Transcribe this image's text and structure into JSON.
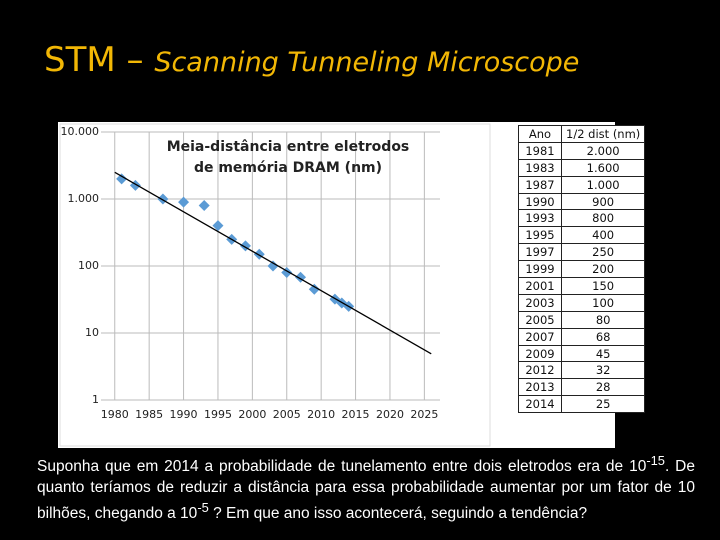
{
  "header": {
    "title_prefix": "STM –",
    "title_main": "Scanning Tunneling Microscope"
  },
  "chart_data": {
    "type": "scatter",
    "title_lines": [
      "Meia-distância entre eletrodos",
      "de memória DRAM (nm)"
    ],
    "x": [
      1981,
      1983,
      1987,
      1990,
      1993,
      1995,
      1997,
      1999,
      2001,
      2003,
      2005,
      2007,
      2009,
      2012,
      2013,
      2014
    ],
    "values": [
      2000,
      1600,
      1000,
      900,
      800,
      400,
      250,
      200,
      150,
      100,
      80,
      68,
      45,
      32,
      28,
      25
    ],
    "color": "#5b9bd5",
    "trendline": {
      "x": [
        1980,
        2026
      ],
      "values": [
        2500,
        4.9
      ],
      "color": "#000000"
    },
    "xlim": [
      1978,
      2028
    ],
    "xticks": [
      1980,
      1985,
      1990,
      1995,
      2000,
      2005,
      2010,
      2015,
      2020,
      2025
    ],
    "ylim": [
      1,
      10000
    ],
    "log_y": true,
    "yticks": [
      {
        "value": 10000,
        "label": "10.000"
      },
      {
        "value": 1000,
        "label": "1.000"
      },
      100,
      10,
      1
    ],
    "grid": true
  },
  "table": {
    "header": [
      "Ano",
      "1/2 dist (nm)"
    ],
    "rows": [
      [
        "1981",
        "2.000"
      ],
      [
        "1983",
        "1.600"
      ],
      [
        "1987",
        "1.000"
      ],
      [
        "1990",
        "900"
      ],
      [
        "1993",
        "800"
      ],
      [
        "1995",
        "400"
      ],
      [
        "1997",
        "250"
      ],
      [
        "1999",
        "200"
      ],
      [
        "2001",
        "150"
      ],
      [
        "2003",
        "100"
      ],
      [
        "2005",
        "80"
      ],
      [
        "2007",
        "68"
      ],
      [
        "2009",
        "45"
      ],
      [
        "2012",
        "32"
      ],
      [
        "2013",
        "28"
      ],
      [
        "2014",
        "25"
      ]
    ]
  },
  "text": {
    "parts": [
      "Suponha que em 2014 a probabilidade de tunelamento entre dois eletrodos era de 10",
      "-15",
      ". De quanto teríamos de reduzir a distância para essa probabilidade aumentar por um fator de 10 bilhões, chegando a 10",
      "-5",
      " ? Em que ano isso acontecerá, seguindo a tendência?"
    ]
  }
}
